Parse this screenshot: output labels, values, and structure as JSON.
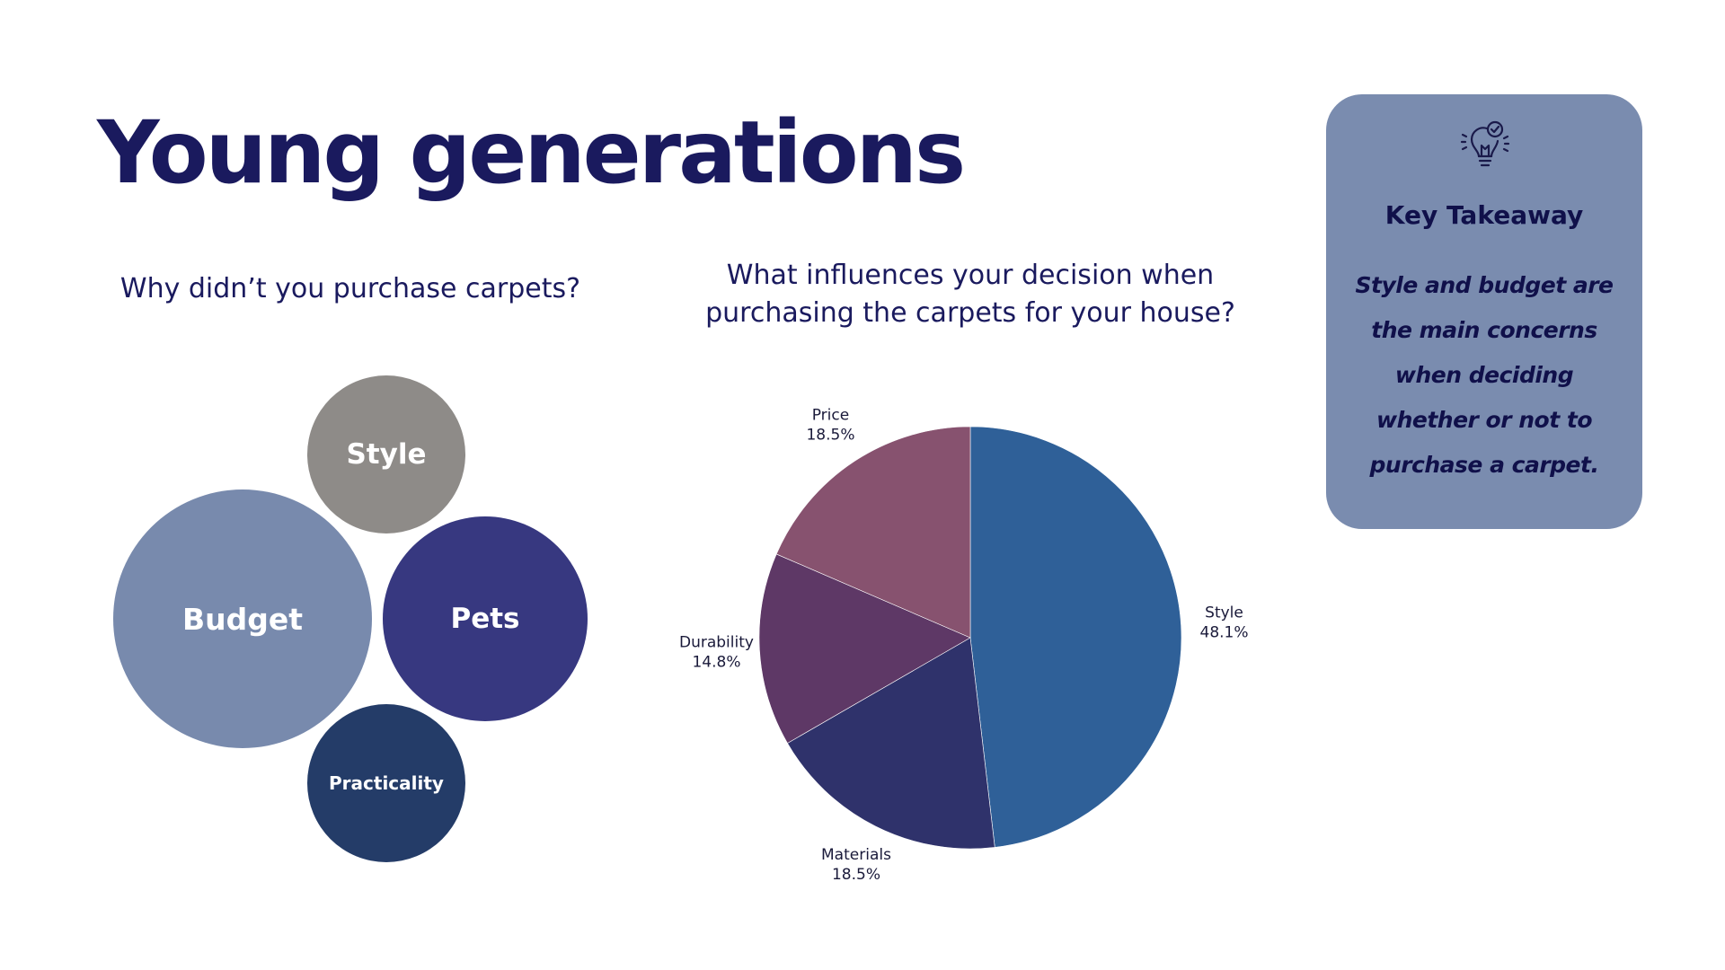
{
  "title": "Young generations",
  "left_chart": {
    "question": "Why didn’t you purchase carpets?",
    "bubbles": [
      {
        "label": "Style",
        "color": "#8e8b88"
      },
      {
        "label": "Budget",
        "color": "#788aad"
      },
      {
        "label": "Pets",
        "color": "#373880"
      },
      {
        "label": "Practicality",
        "color": "#243c68"
      }
    ]
  },
  "chart_data": {
    "type": "pie",
    "title": "What influences your decision when purchasing the carpets for your house?",
    "slices": [
      {
        "label": "Style",
        "value": 48.1,
        "display": "48.1%",
        "color": "#2f6098"
      },
      {
        "label": "Materials",
        "value": 18.5,
        "display": "18.5%",
        "color": "#2f326b"
      },
      {
        "label": "Durability",
        "value": 14.8,
        "display": "14.8%",
        "color": "#5e3866"
      },
      {
        "label": "Price",
        "value": 18.5,
        "display": "18.5%",
        "color": "#87526f"
      }
    ]
  },
  "takeaway": {
    "icon": "lightbulb-check-icon",
    "title": "Key Takeaway",
    "body": "Style and budget are the main concerns when deciding whether or not to purchase a carpet."
  }
}
